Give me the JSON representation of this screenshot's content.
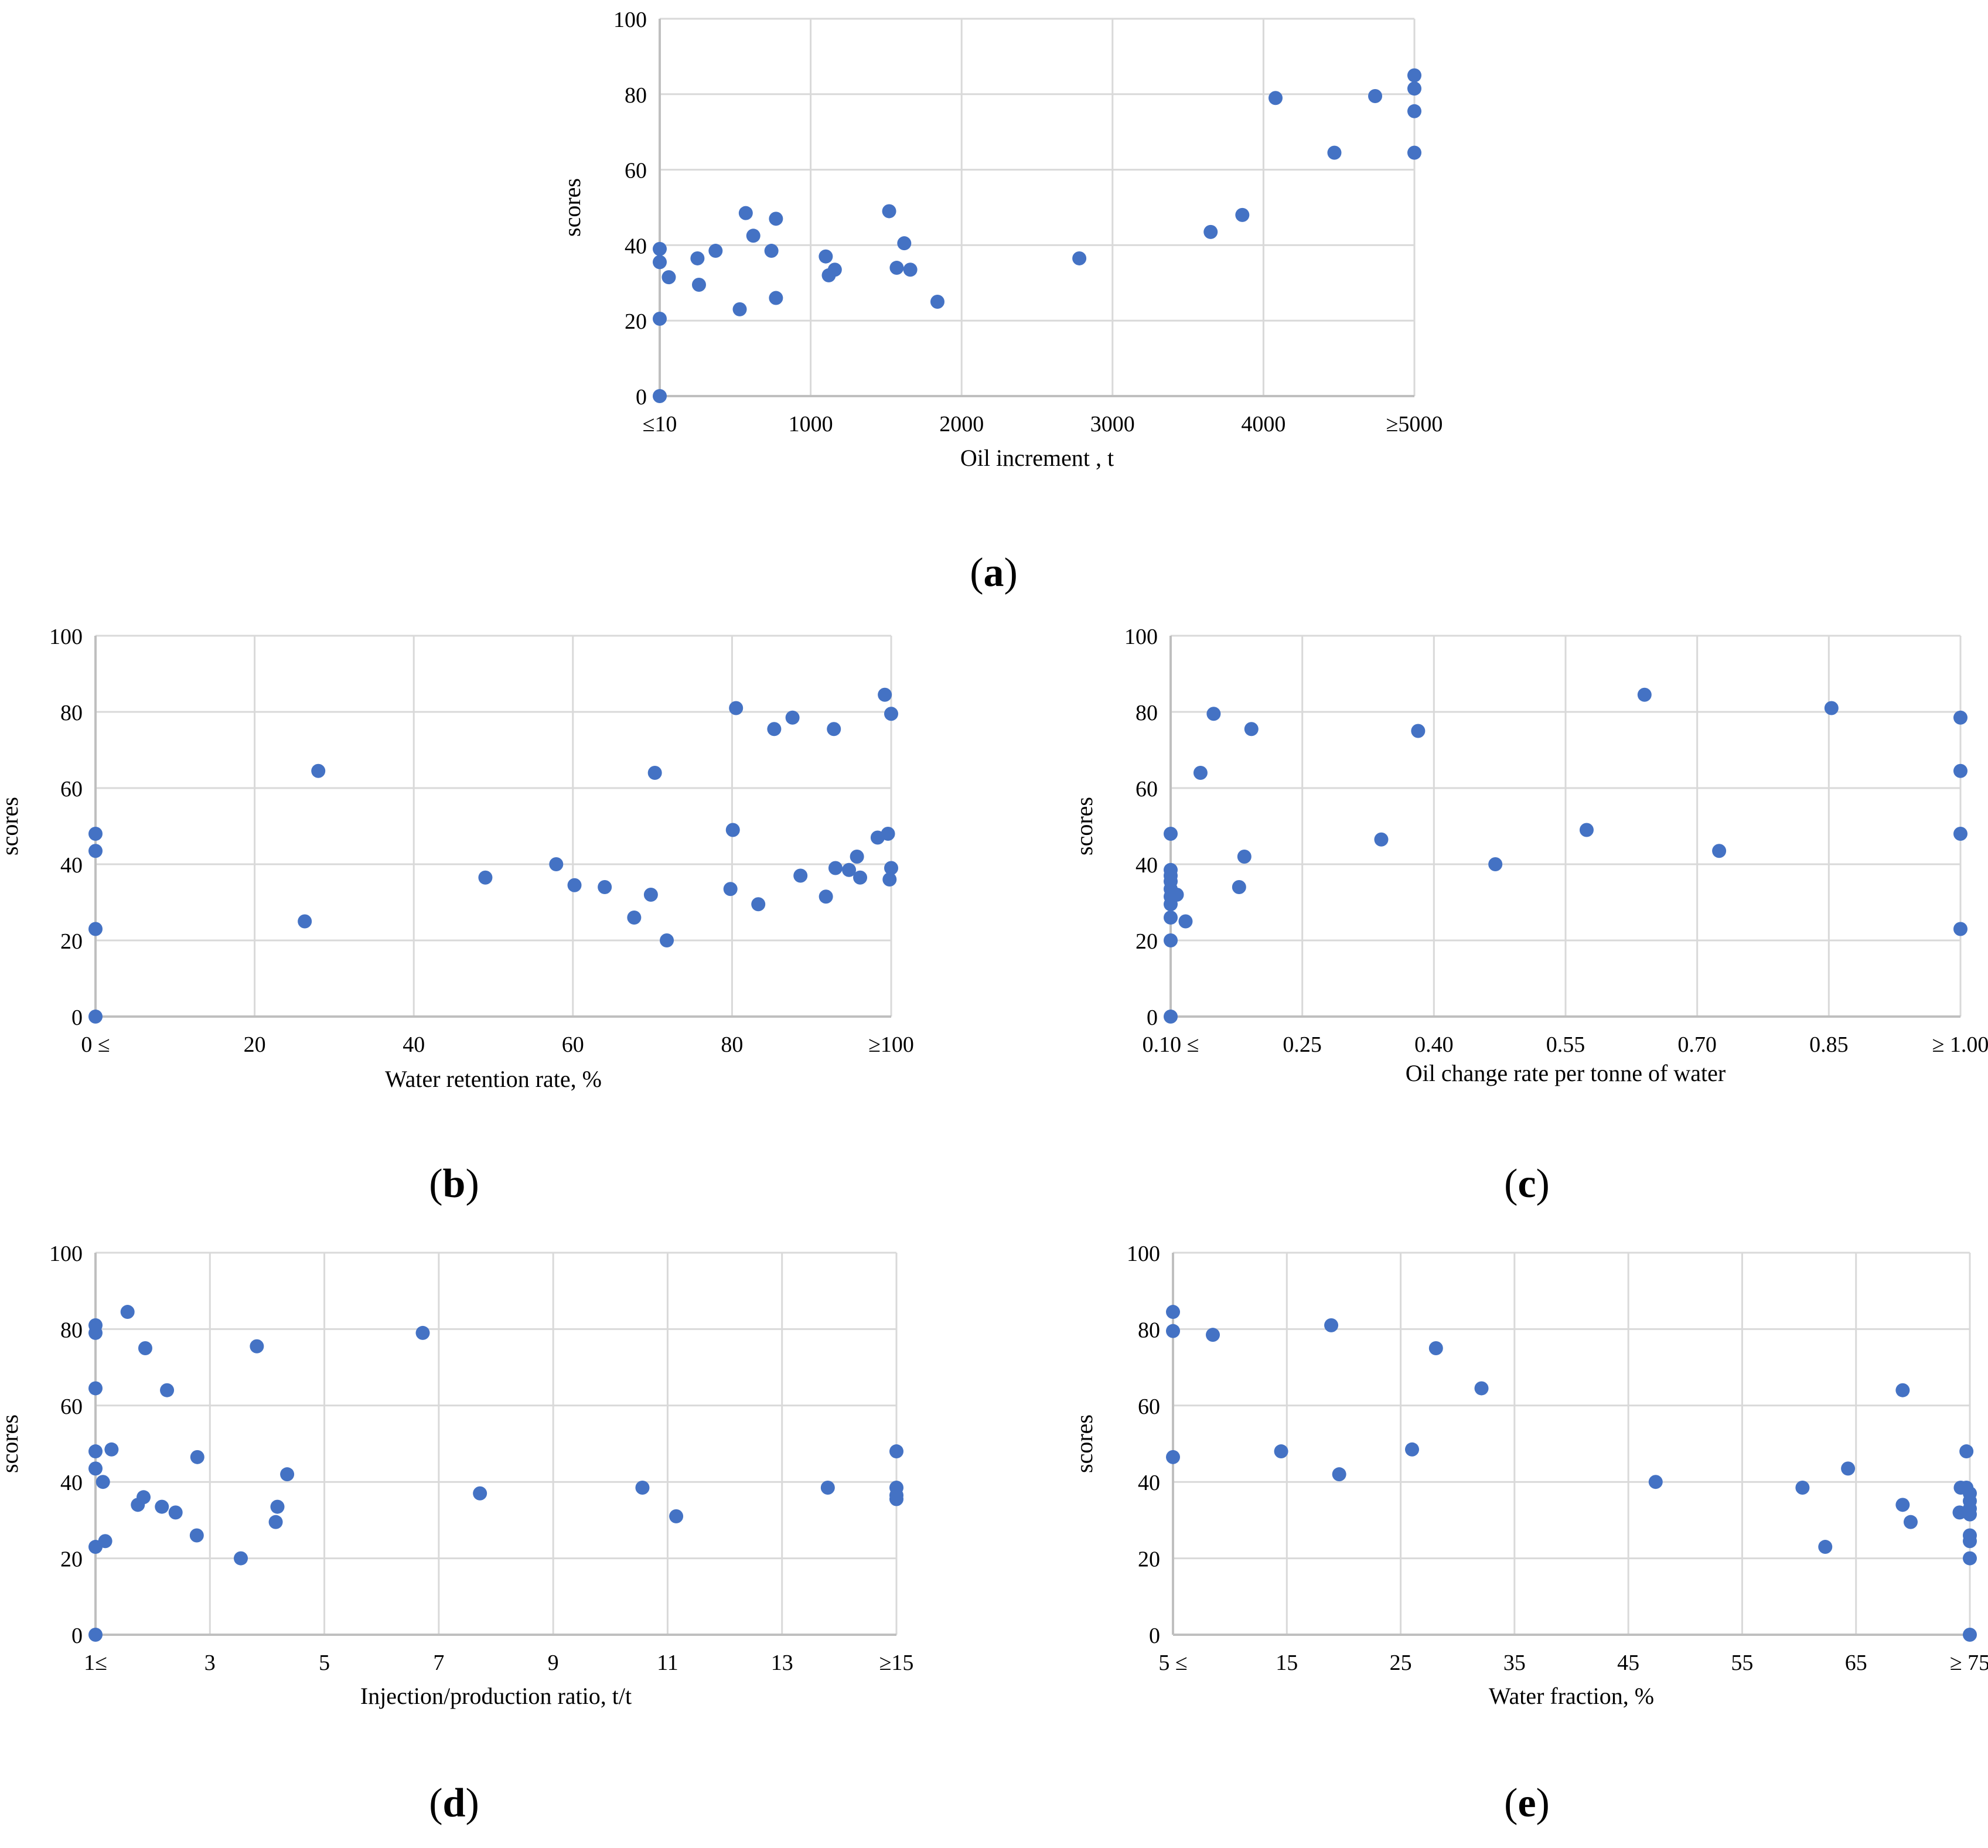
{
  "marker_color": "#4472C4",
  "grid_color": "#D9D9D9",
  "axis_color": "#BFBFBF",
  "chart_data": [
    {
      "id": "a",
      "type": "scatter",
      "panel_label": "a",
      "ylabel": "scores",
      "xlabel": "Oil increment , t",
      "xlim": [
        0,
        5000
      ],
      "ylim": [
        0,
        100
      ],
      "x_ticks": [
        0,
        1000,
        2000,
        3000,
        4000,
        5000
      ],
      "x_tick_labels": [
        "≤10",
        "1000",
        "2000",
        "3000",
        "4000",
        "≥5000"
      ],
      "y_ticks": [
        0,
        20,
        40,
        60,
        80,
        100
      ],
      "y_tick_labels": [
        "0",
        "20",
        "40",
        "60",
        "80",
        "100"
      ],
      "points": [
        [
          0,
          0
        ],
        [
          0,
          20.5
        ],
        [
          0,
          35.5
        ],
        [
          0,
          39
        ],
        [
          60,
          31.5
        ],
        [
          250,
          36.5
        ],
        [
          260,
          29.5
        ],
        [
          370,
          38.5
        ],
        [
          530,
          23
        ],
        [
          570,
          48.5
        ],
        [
          620,
          42.5
        ],
        [
          740,
          38.5
        ],
        [
          770,
          47
        ],
        [
          770,
          26
        ],
        [
          1100,
          37
        ],
        [
          1120,
          32
        ],
        [
          1160,
          33.5
        ],
        [
          1520,
          49
        ],
        [
          1570,
          34
        ],
        [
          1620,
          40.5
        ],
        [
          1660,
          33.5
        ],
        [
          1840,
          25
        ],
        [
          2780,
          36.5
        ],
        [
          3650,
          43.5
        ],
        [
          3860,
          48
        ],
        [
          4080,
          79
        ],
        [
          4470,
          64.5
        ],
        [
          4740,
          79.5
        ],
        [
          5000,
          85
        ],
        [
          5000,
          81.5
        ],
        [
          5000,
          75.5
        ],
        [
          5000,
          64.5
        ]
      ]
    },
    {
      "id": "b",
      "type": "scatter",
      "panel_label": "b",
      "ylabel": "scores",
      "xlabel": "Water retention rate, %",
      "xlim": [
        0,
        100
      ],
      "ylim": [
        0,
        100
      ],
      "x_ticks": [
        0,
        20,
        40,
        60,
        80,
        100
      ],
      "x_tick_labels": [
        "0 ≤",
        "20",
        "40",
        "60",
        "80",
        "≥100"
      ],
      "y_ticks": [
        0,
        20,
        40,
        60,
        80,
        100
      ],
      "y_tick_labels": [
        "0",
        "20",
        "40",
        "60",
        "80",
        "100"
      ],
      "points": [
        [
          0,
          0
        ],
        [
          0,
          23
        ],
        [
          0,
          43.5
        ],
        [
          0,
          48
        ],
        [
          26.3,
          25
        ],
        [
          28,
          64.5
        ],
        [
          49,
          36.5
        ],
        [
          57.9,
          40
        ],
        [
          60.2,
          34.5
        ],
        [
          64,
          34
        ],
        [
          67.7,
          26
        ],
        [
          69.8,
          32
        ],
        [
          70.3,
          64
        ],
        [
          71.8,
          20
        ],
        [
          79.8,
          33.5
        ],
        [
          80.1,
          49
        ],
        [
          80.5,
          81
        ],
        [
          83.3,
          29.5
        ],
        [
          85.3,
          75.5
        ],
        [
          87.6,
          78.5
        ],
        [
          88.6,
          37
        ],
        [
          91.8,
          31.5
        ],
        [
          92.8,
          75.5
        ],
        [
          93,
          39
        ],
        [
          94.7,
          38.5
        ],
        [
          95.7,
          42
        ],
        [
          96.1,
          36.5
        ],
        [
          98.3,
          47
        ],
        [
          99.2,
          84.5
        ],
        [
          99.6,
          48
        ],
        [
          99.8,
          36
        ],
        [
          100,
          79.5
        ],
        [
          100,
          39
        ]
      ]
    },
    {
      "id": "c",
      "type": "scatter",
      "panel_label": "c",
      "ylabel": "scores",
      "xlabel": "Oil change rate per tonne of water",
      "xlim": [
        0.1,
        1.0
      ],
      "ylim": [
        0,
        100
      ],
      "x_ticks": [
        0.1,
        0.25,
        0.4,
        0.55,
        0.7,
        0.85,
        1.0
      ],
      "x_tick_labels": [
        "0.10 ≤",
        "0.25",
        "0.40",
        "0.55",
        "0.70",
        "0.85",
        "≥ 1.00"
      ],
      "y_ticks": [
        0,
        20,
        40,
        60,
        80,
        100
      ],
      "y_tick_labels": [
        "0",
        "20",
        "40",
        "60",
        "80",
        "100"
      ],
      "points": [
        [
          0.1,
          0
        ],
        [
          0.1,
          20
        ],
        [
          0.1,
          26
        ],
        [
          0.1,
          29.5
        ],
        [
          0.1,
          31.5
        ],
        [
          0.1,
          33.5
        ],
        [
          0.1,
          35.5
        ],
        [
          0.1,
          37
        ],
        [
          0.1,
          38.5
        ],
        [
          0.1,
          48
        ],
        [
          0.107,
          32
        ],
        [
          0.117,
          25
        ],
        [
          0.134,
          64
        ],
        [
          0.149,
          79.5
        ],
        [
          0.178,
          34
        ],
        [
          0.184,
          42
        ],
        [
          0.192,
          75.5
        ],
        [
          0.34,
          46.5
        ],
        [
          0.382,
          75
        ],
        [
          0.47,
          40
        ],
        [
          0.574,
          49
        ],
        [
          0.64,
          84.5
        ],
        [
          0.725,
          43.5
        ],
        [
          0.853,
          81
        ],
        [
          1.0,
          78.5
        ],
        [
          1.0,
          64.5
        ],
        [
          1.0,
          48
        ],
        [
          1.0,
          23
        ]
      ]
    },
    {
      "id": "d",
      "type": "scatter",
      "panel_label": "d",
      "ylabel": "scores",
      "xlabel": "Injection/production ratio, t/t",
      "xlim": [
        1,
        15
      ],
      "ylim": [
        0,
        100
      ],
      "x_ticks": [
        1,
        3,
        5,
        7,
        9,
        11,
        13,
        15
      ],
      "x_tick_labels": [
        "1≤",
        "3",
        "5",
        "7",
        "9",
        "11",
        "13",
        "≥15"
      ],
      "y_ticks": [
        0,
        20,
        40,
        60,
        80,
        100
      ],
      "y_tick_labels": [
        "0",
        "20",
        "40",
        "60",
        "80",
        "100"
      ],
      "points": [
        [
          1,
          0
        ],
        [
          1,
          23
        ],
        [
          1,
          43.5
        ],
        [
          1,
          48
        ],
        [
          1,
          64.5
        ],
        [
          1,
          79
        ],
        [
          1,
          81
        ],
        [
          1.13,
          40
        ],
        [
          1.17,
          24.5
        ],
        [
          1.28,
          48.5
        ],
        [
          1.56,
          84.5
        ],
        [
          1.74,
          34
        ],
        [
          1.84,
          36
        ],
        [
          1.87,
          75
        ],
        [
          2.16,
          33.5
        ],
        [
          2.4,
          32
        ],
        [
          2.25,
          64
        ],
        [
          2.77,
          26
        ],
        [
          2.78,
          46.5
        ],
        [
          3.54,
          20
        ],
        [
          3.82,
          75.5
        ],
        [
          4.15,
          29.5
        ],
        [
          4.18,
          33.5
        ],
        [
          4.35,
          42
        ],
        [
          6.72,
          79
        ],
        [
          7.72,
          37
        ],
        [
          10.56,
          38.5
        ],
        [
          11.15,
          31
        ],
        [
          13.8,
          38.5
        ],
        [
          15,
          48
        ],
        [
          15,
          38.5
        ],
        [
          15,
          36.5
        ],
        [
          15,
          35.5
        ]
      ]
    },
    {
      "id": "e",
      "type": "scatter",
      "panel_label": "e",
      "ylabel": "scores",
      "xlabel": "Water fraction, %",
      "xlim": [
        5,
        75
      ],
      "ylim": [
        0,
        100
      ],
      "x_ticks": [
        5,
        15,
        25,
        35,
        45,
        55,
        65,
        75
      ],
      "x_tick_labels": [
        "5 ≤",
        "15",
        "25",
        "35",
        "45",
        "55",
        "65",
        "≥ 75"
      ],
      "y_ticks": [
        0,
        20,
        40,
        60,
        80,
        100
      ],
      "y_tick_labels": [
        "0",
        "20",
        "40",
        "60",
        "80",
        "100"
      ],
      "points": [
        [
          5,
          84.5
        ],
        [
          5,
          79.5
        ],
        [
          5,
          46.5
        ],
        [
          8.5,
          78.5
        ],
        [
          14.5,
          48
        ],
        [
          18.9,
          81
        ],
        [
          19.6,
          42
        ],
        [
          26,
          48.5
        ],
        [
          28.1,
          75
        ],
        [
          32.1,
          64.5
        ],
        [
          47.4,
          40
        ],
        [
          60.3,
          38.5
        ],
        [
          62.3,
          23
        ],
        [
          64.3,
          43.5
        ],
        [
          69.1,
          64
        ],
        [
          69.1,
          34
        ],
        [
          69.8,
          29.5
        ],
        [
          74.1,
          32
        ],
        [
          74.2,
          38.5
        ],
        [
          74.7,
          48
        ],
        [
          74.7,
          38.5
        ],
        [
          75,
          37
        ],
        [
          75,
          35
        ],
        [
          75,
          33
        ],
        [
          75,
          31.5
        ],
        [
          75,
          26
        ],
        [
          75,
          24.5
        ],
        [
          75,
          20
        ],
        [
          75,
          0
        ]
      ]
    }
  ]
}
